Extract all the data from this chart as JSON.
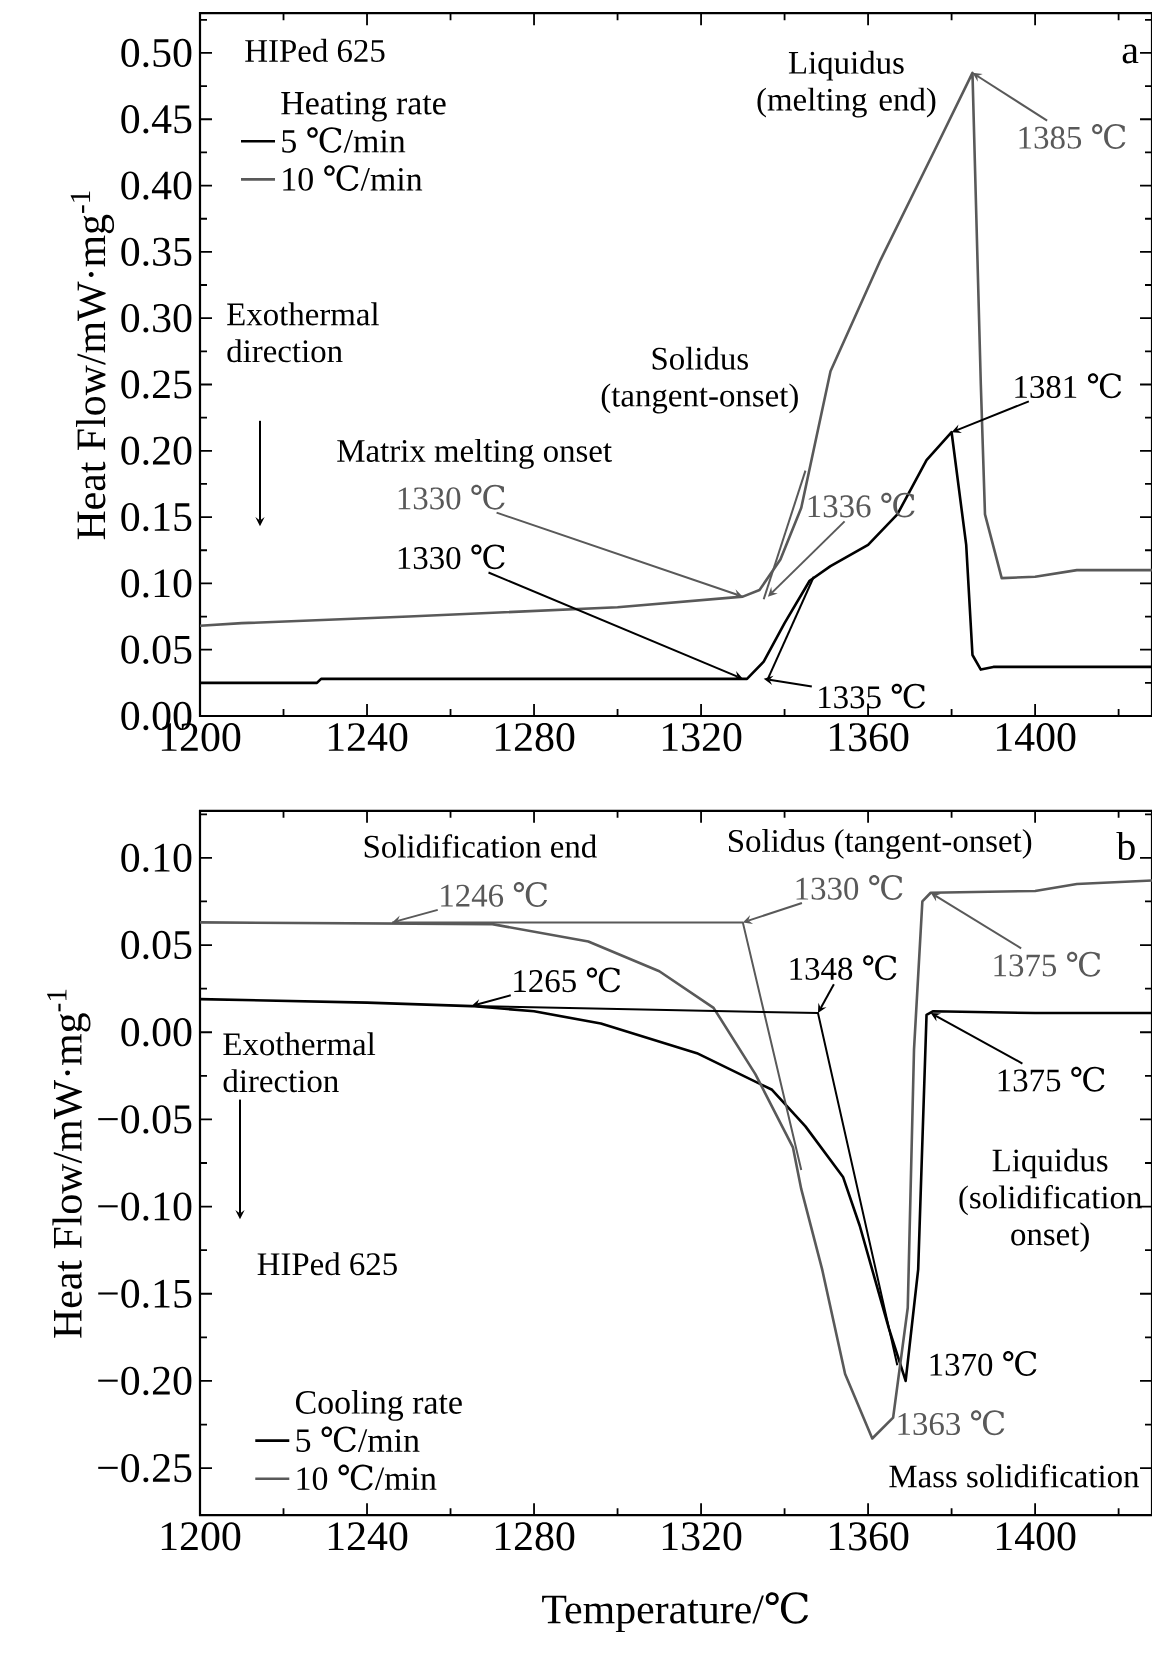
{
  "chart_data": [
    {
      "type": "line",
      "ylabel": "Heat Flow/mW·mg$^{-1}$",
      "legend_title": "Heating rate",
      "legend": "top left",
      "xlim": [
        1200,
        1428
      ],
      "ylim": [
        0,
        0.53
      ],
      "xticks": [
        1200,
        {
          "value": 1220,
          "label": null
        },
        1240,
        {
          "value": 1260,
          "label": null
        },
        1280,
        {
          "value": 1300,
          "label": null
        },
        1320,
        {
          "value": 1340,
          "label": null
        },
        1360,
        {
          "value": 1380,
          "label": null
        },
        1400,
        {
          "value": 1420,
          "label": null
        }
      ],
      "yticks": [
        {
          "value": 0,
          "label": "0.00"
        },
        {
          "value": 0.025,
          "label": null
        },
        {
          "value": 0.05,
          "label": "0.05"
        },
        {
          "value": 0.075,
          "label": null
        },
        {
          "value": 0.1,
          "label": "0.10"
        },
        {
          "value": 0.125,
          "label": null
        },
        {
          "value": 0.15,
          "label": "0.15"
        },
        {
          "value": 0.175,
          "label": null
        },
        {
          "value": 0.2,
          "label": "0.20"
        },
        {
          "value": 0.225,
          "label": null
        },
        {
          "value": 0.25,
          "label": "0.25"
        },
        {
          "value": 0.275,
          "label": null
        },
        {
          "value": 0.3,
          "label": "0.30"
        },
        {
          "value": 0.325,
          "label": null
        },
        {
          "value": 0.35,
          "label": "0.35"
        },
        {
          "value": 0.375,
          "label": null
        },
        {
          "value": 0.4,
          "label": "0.40"
        },
        {
          "value": 0.425,
          "label": null
        },
        {
          "value": 0.45,
          "label": "0.45"
        },
        {
          "value": 0.475,
          "label": null
        },
        {
          "value": 0.5,
          "label": "0.50"
        },
        {
          "value": 0.525,
          "label": null
        }
      ],
      "series": [
        {
          "name": "5 ℃/min",
          "color": "#000000",
          "x": [
            1200,
            1228,
            1229,
            1300,
            1330,
            1331,
            1335,
            1340,
            1346,
            1351,
            1360,
            1367,
            1374,
            1380,
            1383.5,
            1385,
            1387,
            1390,
            1428
          ],
          "values": [
            0.025,
            0.025,
            0.028,
            0.028,
            0.028,
            0.028,
            0.041,
            0.07,
            0.102,
            0.113,
            0.129,
            0.152,
            0.193,
            0.214,
            0.129,
            0.046,
            0.035,
            0.037,
            0.037
          ]
        },
        {
          "name": "10 ℃/min",
          "color": "#595959",
          "x": [
            1200,
            1210,
            1250,
            1300,
            1330,
            1334,
            1339,
            1344,
            1351,
            1363,
            1376,
            1385,
            1387,
            1388,
            1392,
            1400,
            1410,
            1428
          ],
          "values": [
            0.068,
            0.07,
            0.075,
            0.082,
            0.09,
            0.095,
            0.118,
            0.157,
            0.26,
            0.344,
            0.427,
            0.485,
            0.25,
            0.152,
            0.104,
            0.105,
            0.11,
            0.11
          ]
        },
        {
          "type": "line",
          "color": "#595959",
          "x": [
            1335,
            1345
          ],
          "values": [
            0.088,
            0.185
          ]
        },
        {
          "type": "line",
          "color": "#000000",
          "x": [
            1336,
            1347
          ],
          "values": [
            0.028,
            0.105
          ]
        }
      ],
      "annotations": [
        "HIPed 625",
        "Exothermal direction",
        "Liquidus (melting end)",
        "Solidus (tangent-onset)",
        "Matrix melting onset",
        {
          "text": "1385 ℃",
          "x": 1385,
          "y": 0.485
        },
        {
          "text": "1381 ℃",
          "x": 1380,
          "y": 0.214
        },
        {
          "text": "1330 ℃",
          "x": 1330,
          "y": 0.09
        },
        {
          "text": "1336 ℃",
          "x": 1336,
          "y": 0.09
        },
        {
          "text": "1330 ℃",
          "x": 1330,
          "y": 0.028
        },
        {
          "text": "1335 ℃",
          "x": 1335,
          "y": 0.028
        },
        "a"
      ]
    },
    {
      "type": "line",
      "xlabel": "Temperature/℃",
      "ylabel": "Heat Flow/mW·mg$^{-1}$",
      "legend_title": "Cooling rate",
      "legend": "bottom left",
      "xlim": [
        1200,
        1428
      ],
      "ylim": [
        -0.277,
        0.127
      ],
      "xticks": [
        1200,
        {
          "value": 1220,
          "label": null
        },
        1240,
        {
          "value": 1260,
          "label": null
        },
        1280,
        {
          "value": 1300,
          "label": null
        },
        1320,
        {
          "value": 1340,
          "label": null
        },
        1360,
        {
          "value": 1380,
          "label": null
        },
        1400,
        {
          "value": 1420,
          "label": null
        }
      ],
      "yticks": [
        {
          "value": -0.25,
          "label": "−0.25"
        },
        {
          "value": -0.225,
          "label": null
        },
        {
          "value": -0.2,
          "label": "−0.20"
        },
        {
          "value": -0.175,
          "label": null
        },
        {
          "value": -0.15,
          "label": "−0.15"
        },
        {
          "value": -0.125,
          "label": null
        },
        {
          "value": -0.1,
          "label": "−0.10"
        },
        {
          "value": -0.075,
          "label": null
        },
        {
          "value": -0.05,
          "label": "−0.05"
        },
        {
          "value": -0.025,
          "label": null
        },
        {
          "value": 0,
          "label": "0.00"
        },
        {
          "value": 0.025,
          "label": null
        },
        {
          "value": 0.05,
          "label": "0.05"
        },
        {
          "value": 0.075,
          "label": null
        },
        {
          "value": 0.1,
          "label": "0.10"
        },
        {
          "value": 0.125,
          "label": null
        }
      ],
      "series": [
        {
          "name": "5 ℃/min",
          "color": "#000000",
          "x": [
            1200,
            1240,
            1265,
            1280,
            1296,
            1319,
            1337,
            1345,
            1354,
            1358,
            1365,
            1369,
            1372,
            1374,
            1375.5,
            1400,
            1428
          ],
          "values": [
            0.019,
            0.017,
            0.015,
            0.012,
            0.005,
            -0.012,
            -0.033,
            -0.054,
            -0.083,
            -0.111,
            -0.17,
            -0.2,
            -0.136,
            0.01,
            0.012,
            0.011,
            0.011
          ]
        },
        {
          "name": "10 ℃/min",
          "color": "#595959",
          "x": [
            1200,
            1270,
            1293,
            1310,
            1323,
            1333,
            1342,
            1344,
            1349,
            1354.5,
            1361,
            1366,
            1369.5,
            1371,
            1373,
            1375,
            1400,
            1410,
            1428
          ],
          "values": [
            0.063,
            0.062,
            0.052,
            0.035,
            0.014,
            -0.024,
            -0.066,
            -0.09,
            -0.136,
            -0.196,
            -0.233,
            -0.221,
            -0.158,
            -0.01,
            0.075,
            0.08,
            0.081,
            0.085,
            0.087
          ]
        },
        {
          "type": "line",
          "color": "#595959",
          "x": [
            1246,
            1330,
            1344
          ],
          "values": [
            0.063,
            0.063,
            -0.079
          ]
        },
        {
          "type": "line",
          "color": "#000000",
          "x": [
            1265,
            1348,
            1367
          ],
          "values": [
            0.015,
            0.011,
            -0.191
          ]
        }
      ],
      "annotations": [
        "Solidification end",
        "Solidus (tangent-onset)",
        "b",
        {
          "text": "1246 ℃",
          "x": 1246,
          "y": 0.063
        },
        {
          "text": "1330 ℃",
          "x": 1330,
          "y": 0.063
        },
        {
          "text": "1375 ℃",
          "x": 1375,
          "y": 0.08
        },
        {
          "text": "1265 ℃",
          "x": 1265,
          "y": 0.015
        },
        {
          "text": "1348 ℃",
          "x": 1348,
          "y": 0.011
        },
        {
          "text": "1375 ℃",
          "x": 1375,
          "y": 0.011
        },
        "Liquidus (solidification onset)",
        {
          "text": "1370 ℃",
          "x": 1370,
          "y": -0.199
        },
        {
          "text": "1363 ℃",
          "x": 1363,
          "y": -0.233
        },
        "Mass solidification",
        "Exothermal direction",
        "HIPed 625"
      ]
    }
  ]
}
